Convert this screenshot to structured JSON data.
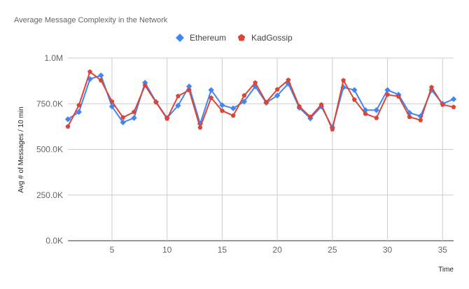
{
  "chart_data": {
    "type": "line",
    "title": "Average Message Complexity in the Network",
    "xlabel": "Time",
    "ylabel": "Avg # of Messages / 10 min",
    "x": [
      1,
      2,
      3,
      4,
      5,
      6,
      7,
      8,
      9,
      10,
      11,
      12,
      13,
      14,
      15,
      16,
      17,
      18,
      19,
      20,
      21,
      22,
      23,
      24,
      25,
      26,
      27,
      28,
      29,
      30,
      31,
      32,
      33,
      34,
      35,
      36
    ],
    "xlim": [
      1,
      36
    ],
    "ylim": [
      0,
      1000000
    ],
    "x_ticks": [
      5,
      10,
      15,
      20,
      25,
      30,
      35
    ],
    "x_tick_labels": [
      "5",
      "10",
      "15",
      "20",
      "25",
      "30",
      "35"
    ],
    "y_ticks": [
      0,
      250000,
      500000,
      750000,
      1000000
    ],
    "y_tick_labels": [
      "0.0K",
      "250.0K",
      "500.0K",
      "750.0K",
      "1.0M"
    ],
    "grid": true,
    "legend_position": "top",
    "series": [
      {
        "name": "Ethereum",
        "color": "#4285f4",
        "marker": "diamond",
        "values": [
          665000,
          705000,
          885000,
          905000,
          735000,
          648000,
          672000,
          865000,
          760000,
          672000,
          740000,
          845000,
          640000,
          825000,
          742000,
          725000,
          762000,
          845000,
          755000,
          795000,
          860000,
          728000,
          670000,
          735000,
          620000,
          840000,
          825000,
          715000,
          715000,
          825000,
          800000,
          700000,
          682000,
          825000,
          750000,
          775000
        ]
      },
      {
        "name": "KadGossip",
        "color": "#db4437",
        "marker": "pentagon",
        "values": [
          625000,
          742000,
          925000,
          878000,
          762000,
          675000,
          705000,
          850000,
          758000,
          668000,
          792000,
          825000,
          620000,
          782000,
          712000,
          685000,
          795000,
          865000,
          758000,
          828000,
          880000,
          735000,
          678000,
          745000,
          610000,
          878000,
          772000,
          695000,
          672000,
          800000,
          790000,
          678000,
          660000,
          840000,
          745000,
          732000
        ]
      }
    ]
  }
}
